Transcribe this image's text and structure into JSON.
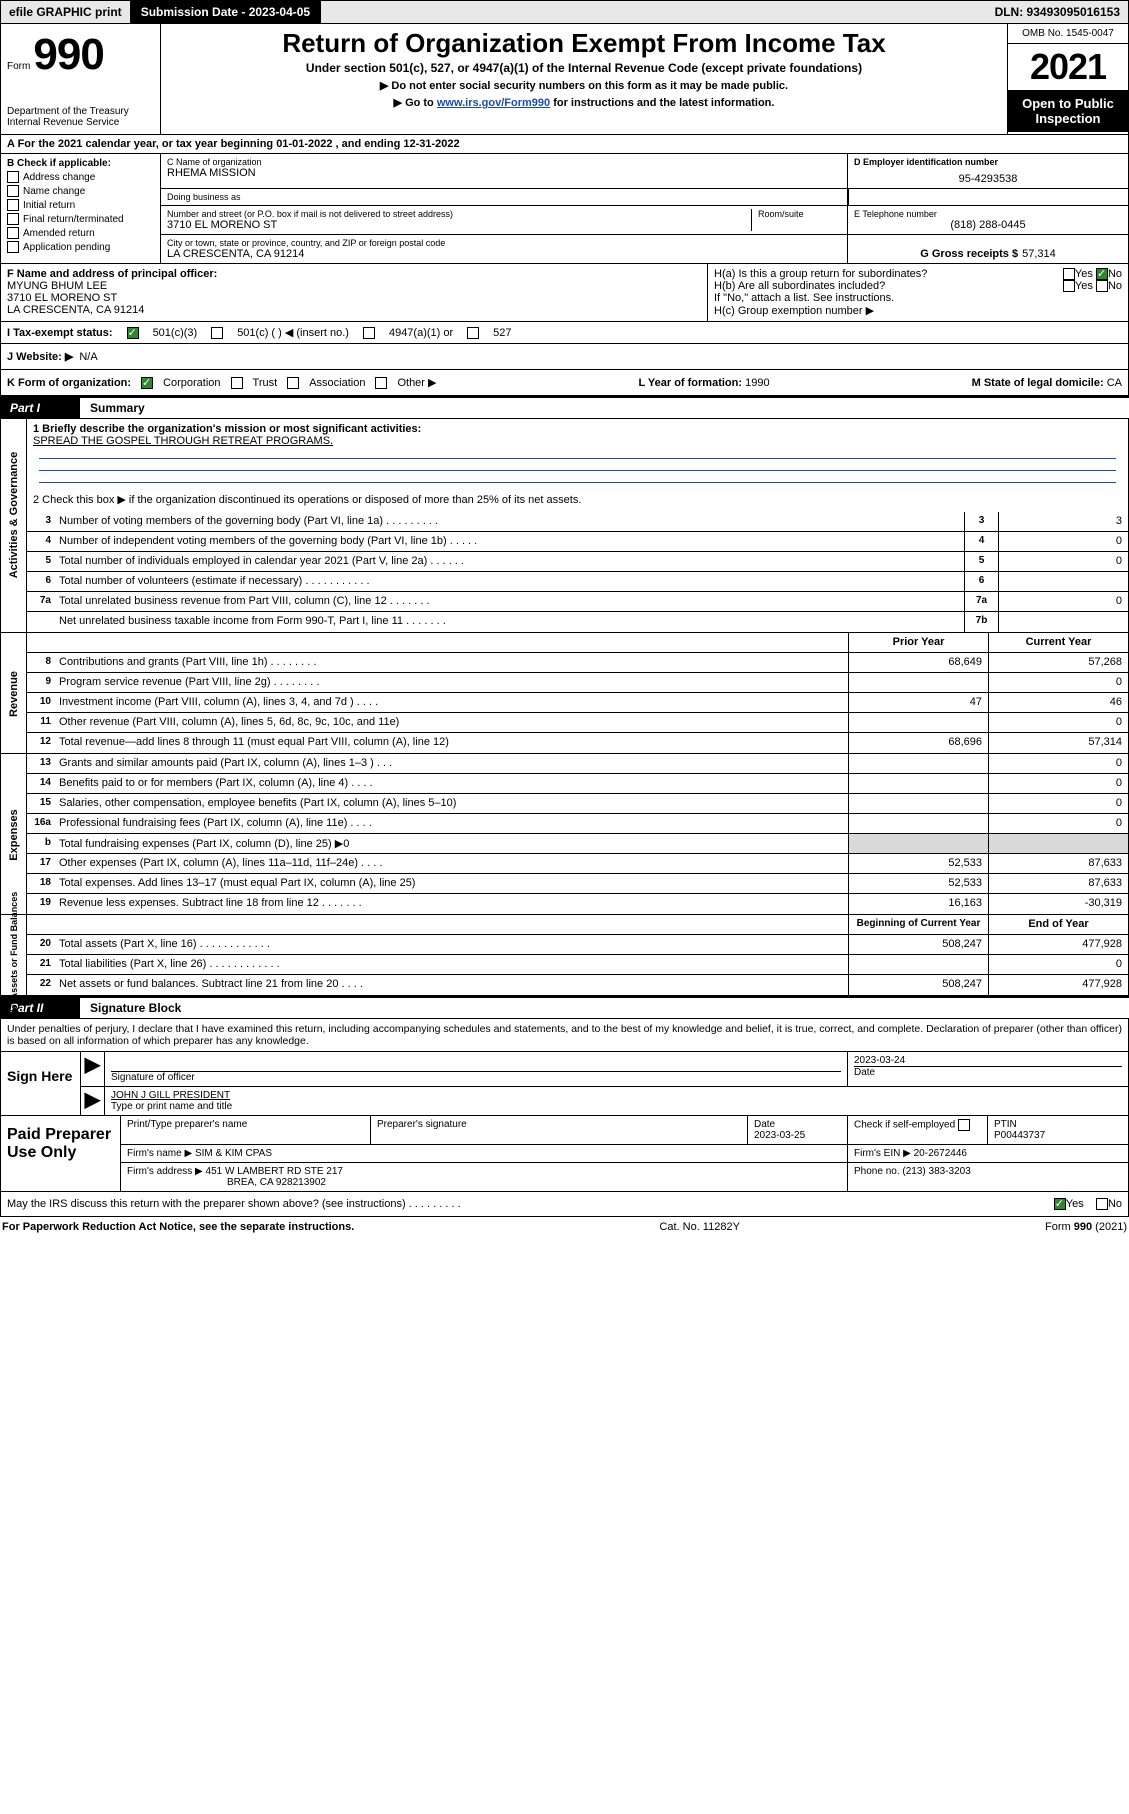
{
  "header_bar": {
    "efile_print": "efile GRAPHIC print",
    "submission_date_label": "Submission Date - 2023-04-05",
    "dln_label": "DLN: 93493095016153"
  },
  "title": {
    "form_word": "Form",
    "form_num": "990",
    "h1": "Return of Organization Exempt From Income Tax",
    "subtitle": "Under section 501(c), 527, or 4947(a)(1) of the Internal Revenue Code (except private foundations)",
    "instr1": "▶ Do not enter social security numbers on this form as it may be made public.",
    "instr2_pre": "▶ Go to ",
    "instr2_link": "www.irs.gov/Form990",
    "instr2_post": " for instructions and the latest information.",
    "dept": "Department of the Treasury\nInternal Revenue Service",
    "omb": "OMB No. 1545-0047",
    "year": "2021",
    "open_pub": "Open to Public Inspection"
  },
  "tax_year_row": "A For the 2021 calendar year, or tax year beginning 01-01-2022   , and ending 12-31-2022",
  "box_b_label": "B Check if applicable:",
  "box_b_items": [
    "Address change",
    "Name change",
    "Initial return",
    "Final return/terminated",
    "Amended return",
    "Application pending"
  ],
  "box_c": {
    "name_lbl": "C Name of organization",
    "name": "RHEMA MISSION",
    "dba_lbl": "Doing business as",
    "dba": "",
    "street_lbl": "Number and street (or P.O. box if mail is not delivered to street address)",
    "room_lbl": "Room/suite",
    "street": "3710 EL MORENO ST",
    "city_lbl": "City or town, state or province, country, and ZIP or foreign postal code",
    "city": "LA CRESCENTA, CA  91214"
  },
  "box_d": {
    "lbl": "D Employer identification number",
    "val": "95-4293538"
  },
  "box_e": {
    "lbl": "E Telephone number",
    "val": "(818) 288-0445"
  },
  "box_g": {
    "lbl": "G Gross receipts $",
    "val": "57,314"
  },
  "box_f": {
    "lbl": "F  Name and address of principal officer:",
    "name": "MYUNG BHUM LEE",
    "street": "3710 EL MORENO ST",
    "city": "LA CRESCENTA, CA  91214"
  },
  "box_h": {
    "a_lbl": "H(a)  Is this a group return for subordinates?",
    "a_yes": "Yes",
    "a_no": "No",
    "b_lbl": "H(b)  Are all subordinates included?",
    "b_yes": "Yes",
    "b_no": "No",
    "note": "If \"No,\" attach a list. See instructions.",
    "c_lbl": "H(c)  Group exemption number ▶"
  },
  "box_i": {
    "lbl": "I    Tax-exempt status:",
    "opt1": "501(c)(3)",
    "opt2": "501(c) (   ) ◀ (insert no.)",
    "opt3": "4947(a)(1) or",
    "opt4": "527"
  },
  "box_j": {
    "lbl": "J   Website: ▶",
    "val": "N/A"
  },
  "box_k": {
    "lbl": "K Form of organization:",
    "c": "Corporation",
    "t": "Trust",
    "a": "Association",
    "o": "Other ▶"
  },
  "box_l": {
    "lbl": "L Year of formation:",
    "val": "1990"
  },
  "box_m": {
    "lbl": "M State of legal domicile:",
    "val": "CA"
  },
  "part1": {
    "label": "Part I",
    "title": "Summary"
  },
  "mission_lbl": "1  Briefly describe the organization's mission or most significant activities:",
  "mission": "SPREAD THE GOSPEL THROUGH RETREAT PROGRAMS.",
  "line2": "2   Check this box ▶        if the organization discontinued its operations or disposed of more than 25% of its net assets.",
  "lines_top": [
    {
      "n": "3",
      "d": "Number of voting members of the governing body (Part VI, line 1a)   .    .    .    .    .    .    .     .    .",
      "b": "3",
      "v": "3"
    },
    {
      "n": "4",
      "d": "Number of independent voting members of the governing body (Part VI, line 1b)    .    .    .     .    .",
      "b": "4",
      "v": "0"
    },
    {
      "n": "5",
      "d": "Total number of individuals employed in calendar year 2021 (Part V, line 2a)   .    .    .    .    .    .",
      "b": "5",
      "v": "0"
    },
    {
      "n": "6",
      "d": "Total number of volunteers (estimate if necessary)   .    .    .    .    .    .    .    .    .    .    .",
      "b": "6",
      "v": ""
    },
    {
      "n": "7a",
      "d": "Total unrelated business revenue from Part VIII, column (C), line 12   .    .    .    .    .    .    .",
      "b": "7a",
      "v": "0"
    },
    {
      "n": "",
      "d": "Net unrelated business taxable income from Form 990-T, Part I, line 11   .    .    .    .    .    .    .",
      "b": "7b",
      "v": ""
    }
  ],
  "pycy_hdr": {
    "py": "Prior Year",
    "cy": "Current Year"
  },
  "rev_rows": [
    {
      "n": "8",
      "d": "Contributions and grants (Part VIII, line 1h)   .    .    .    .    .    .    .    .",
      "py": "68,649",
      "cy": "57,268"
    },
    {
      "n": "9",
      "d": "Program service revenue (Part VIII, line 2g)   .    .    .    .    .    .    .    .",
      "py": "",
      "cy": "0"
    },
    {
      "n": "10",
      "d": "Investment income (Part VIII, column (A), lines 3, 4, and 7d )   .    .    .    .",
      "py": "47",
      "cy": "46"
    },
    {
      "n": "11",
      "d": "Other revenue (Part VIII, column (A), lines 5, 6d, 8c, 9c, 10c, and 11e)",
      "py": "",
      "cy": "0"
    },
    {
      "n": "12",
      "d": "Total revenue—add lines 8 through 11 (must equal Part VIII, column (A), line 12)",
      "py": "68,696",
      "cy": "57,314"
    }
  ],
  "exp_rows": [
    {
      "n": "13",
      "d": "Grants and similar amounts paid (Part IX, column (A), lines 1–3 )   .    .    .",
      "py": "",
      "cy": "0"
    },
    {
      "n": "14",
      "d": "Benefits paid to or for members (Part IX, column (A), line 4)   .    .    .    .",
      "py": "",
      "cy": "0"
    },
    {
      "n": "15",
      "d": "Salaries, other compensation, employee benefits (Part IX, column (A), lines 5–10)",
      "py": "",
      "cy": "0"
    },
    {
      "n": "16a",
      "d": "Professional fundraising fees (Part IX, column (A), line 11e)   .    .    .    .",
      "py": "",
      "cy": "0"
    },
    {
      "n": "b",
      "d": "Total fundraising expenses (Part IX, column (D), line 25) ▶0",
      "py": "grey",
      "cy": "grey"
    },
    {
      "n": "17",
      "d": "Other expenses (Part IX, column (A), lines 11a–11d, 11f–24e)   .    .    .    .",
      "py": "52,533",
      "cy": "87,633"
    },
    {
      "n": "18",
      "d": "Total expenses. Add lines 13–17 (must equal Part IX, column (A), line 25)",
      "py": "52,533",
      "cy": "87,633"
    },
    {
      "n": "19",
      "d": "Revenue less expenses. Subtract line 18 from line 12   .    .    .    .    .    .    .",
      "py": "16,163",
      "cy": "-30,319"
    }
  ],
  "na_hdr": {
    "py": "Beginning of Current Year",
    "cy": "End of Year"
  },
  "na_rows": [
    {
      "n": "20",
      "d": "Total assets (Part X, line 16)   .    .    .    .    .    .    .    .    .    .    .    .",
      "py": "508,247",
      "cy": "477,928"
    },
    {
      "n": "21",
      "d": "Total liabilities (Part X, line 26)   .    .    .    .    .    .    .    .    .    .    .    .",
      "py": "",
      "cy": "0"
    },
    {
      "n": "22",
      "d": "Net assets or fund balances. Subtract line 21 from line 20   .    .    .    .",
      "py": "508,247",
      "cy": "477,928"
    }
  ],
  "vband": {
    "act": "Activities & Governance",
    "rev": "Revenue",
    "exp": "Expenses",
    "na": "Net Assets or Fund Balances"
  },
  "part2": {
    "label": "Part II",
    "title": "Signature Block"
  },
  "sig_decl": "Under penalties of perjury, I declare that I have examined this return, including accompanying schedules and statements, and to the best of my knowledge and belief, it is true, correct, and complete. Declaration of preparer (other than officer) is based on all information of which preparer has any knowledge.",
  "sign_here": "Sign Here",
  "sig_officer_lbl": "Signature of officer",
  "sig_date_lbl": "Date",
  "sig_date_val": "2023-03-24",
  "officer_name_title": "JOHN J GILL  PRESIDENT",
  "officer_name_title_lbl": "Type or print name and title",
  "paid_lbl": "Paid Preparer Use Only",
  "paid_hdr": {
    "name": "Print/Type preparer's name",
    "sig": "Preparer's signature",
    "date": "Date",
    "check": "Check        if self-employed",
    "ptin": "PTIN"
  },
  "paid_vals": {
    "date": "2023-03-25",
    "ptin": "P00443737"
  },
  "firm_name_lbl": "Firm's name      ▶",
  "firm_name": "SIM & KIM CPAS",
  "firm_ein_lbl": "Firm's EIN ▶",
  "firm_ein": "20-2672446",
  "firm_addr_lbl": "Firm's address ▶",
  "firm_addr1": "451 W LAMBERT RD STE 217",
  "firm_addr2": "BREA, CA  928213902",
  "firm_phone_lbl": "Phone no.",
  "firm_phone": "(213) 383-3203",
  "may_irs": "May the IRS discuss this return with the preparer shown above? (see instructions)   .    .    .    .    .    .    .    .    .",
  "may_yes": "Yes",
  "may_no": "No",
  "footer": {
    "pra": "For Paperwork Reduction Act Notice, see the separate instructions.",
    "cat": "Cat. No. 11282Y",
    "form": "Form 990 (2021)"
  },
  "colors": {
    "link": "#1a4bb5",
    "check_green": "#2c8a2c",
    "grey": "#d9d9d9"
  }
}
